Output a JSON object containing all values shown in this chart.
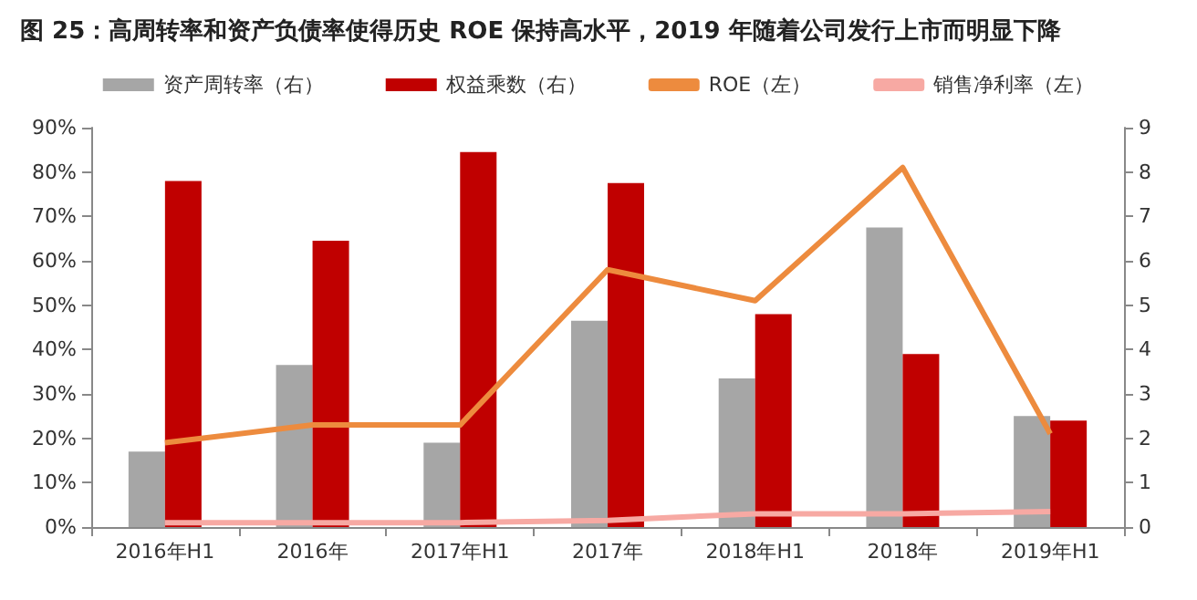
{
  "chart_data": {
    "type": "bar",
    "title": "图 25：高周转率和资产负债率使得历史 ROE 保持高水平，2019 年随着公司发行上市而明显下降",
    "categories": [
      "2016年H1",
      "2016年",
      "2017年H1",
      "2017年",
      "2018年H1",
      "2018年",
      "2019年H1"
    ],
    "series": [
      {
        "name": "资产周转率（右）",
        "axis": "y2",
        "color": "#a6a6a6",
        "values": [
          1.7,
          3.65,
          1.9,
          4.65,
          3.35,
          6.75,
          2.5
        ]
      },
      {
        "name": "权益乘数（右）",
        "axis": "y2",
        "color": "#c00000",
        "values": [
          7.8,
          6.45,
          8.45,
          7.75,
          4.8,
          3.9,
          2.4
        ]
      },
      {
        "name": "ROE（左）",
        "type": "line",
        "color": "#ed8b3e",
        "values": [
          19,
          23,
          23,
          58,
          51,
          81,
          21
        ]
      },
      {
        "name": "销售净利率（左）",
        "type": "line",
        "color": "#f7a9a3",
        "values": [
          1,
          1,
          1,
          1.5,
          3,
          3,
          3.5
        ]
      }
    ],
    "ylim": [
      0,
      90
    ],
    "yticks": [
      {
        "value": 0,
        "label": "0%"
      },
      {
        "value": 10,
        "label": "10%"
      },
      {
        "value": 20,
        "label": "20%"
      },
      {
        "value": 30,
        "label": "30%"
      },
      {
        "value": 40,
        "label": "40%"
      },
      {
        "value": 50,
        "label": "50%"
      },
      {
        "value": 60,
        "label": "60%"
      },
      {
        "value": 70,
        "label": "70%"
      },
      {
        "value": 80,
        "label": "80%"
      },
      {
        "value": 90,
        "label": "90%"
      }
    ],
    "y2lim": [
      0,
      9
    ],
    "y2ticks": [
      0,
      1,
      2,
      3,
      4,
      5,
      6,
      7,
      8,
      9
    ],
    "legend": "top",
    "grid": false,
    "marker": "none"
  }
}
